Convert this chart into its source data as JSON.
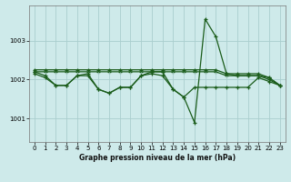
{
  "title": "Graphe pression niveau de la mer (hPa)",
  "background_color": "#ceeaea",
  "grid_color": "#aacece",
  "line_color": "#1a5c1a",
  "xlim": [
    -0.5,
    23.5
  ],
  "ylim": [
    1000.4,
    1003.9
  ],
  "yticks": [
    1001,
    1002,
    1003
  ],
  "xticks": [
    0,
    1,
    2,
    3,
    4,
    5,
    6,
    7,
    8,
    9,
    10,
    11,
    12,
    13,
    14,
    15,
    16,
    17,
    18,
    19,
    20,
    21,
    22,
    23
  ],
  "sA": [
    1002.25,
    1002.25,
    1002.25,
    1002.25,
    1002.25,
    1002.25,
    1002.25,
    1002.25,
    1002.25,
    1002.25,
    1002.25,
    1002.25,
    1002.25,
    1002.25,
    1002.25,
    1002.25,
    1002.25,
    1002.25,
    1002.15,
    1002.15,
    1002.15,
    1002.15,
    1002.05,
    1001.85
  ],
  "sB": [
    1002.2,
    1002.1,
    1001.85,
    1001.85,
    1002.1,
    1002.15,
    1001.75,
    1001.65,
    1001.8,
    1001.8,
    1002.1,
    1002.2,
    1002.2,
    1001.75,
    1001.55,
    1000.9,
    1003.55,
    1003.1,
    1002.15,
    1002.1,
    1002.1,
    1002.1,
    1002.0,
    1001.85
  ],
  "sC": [
    1002.15,
    1002.05,
    1001.85,
    1001.85,
    1002.1,
    1002.1,
    1001.75,
    1001.65,
    1001.8,
    1001.8,
    1002.1,
    1002.15,
    1002.1,
    1001.75,
    1001.55,
    1001.8,
    1001.8,
    1001.8,
    1001.8,
    1001.8,
    1001.8,
    1002.05,
    1001.95,
    1001.85
  ],
  "sD": [
    1002.2,
    1002.2,
    1002.2,
    1002.2,
    1002.2,
    1002.2,
    1002.2,
    1002.2,
    1002.2,
    1002.2,
    1002.2,
    1002.2,
    1002.2,
    1002.2,
    1002.2,
    1002.2,
    1002.2,
    1002.2,
    1002.1,
    1002.1,
    1002.1,
    1002.1,
    1002.05,
    1001.85
  ]
}
